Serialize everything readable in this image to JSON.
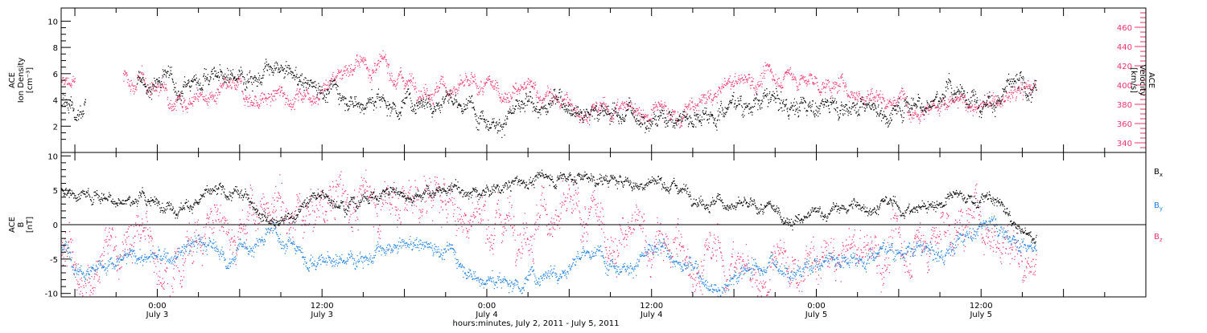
{
  "time_axis": {
    "title": "hours:minutes, July  2, 2011 - July  5, 2011",
    "ticks": [
      {
        "hour": 0,
        "day": 3,
        "time": "0:00",
        "date": "July 3"
      },
      {
        "hour": 12,
        "day": 3,
        "time": "12:00",
        "date": "July 3"
      },
      {
        "hour": 0,
        "day": 4,
        "time": "0:00",
        "date": "July 4"
      },
      {
        "hour": 12,
        "day": 4,
        "time": "12:00",
        "date": "July 4"
      },
      {
        "hour": 0,
        "day": 5,
        "time": "0:00",
        "date": "July 5"
      },
      {
        "hour": 12,
        "day": 5,
        "time": "12:00",
        "date": "July 5"
      }
    ],
    "range": [
      "2011-07-02T17:00",
      "2011-07-06T00:00"
    ],
    "data_end": "2011-07-05T16:00"
  },
  "chart_data": [
    {
      "type": "scatter",
      "ylabel_left": [
        "ACE",
        "Ion Density",
        "[cm⁻³]"
      ],
      "ylabel_right": [
        "ACE",
        "Velocity",
        "[km/s]"
      ],
      "ylim_left": [
        0,
        11
      ],
      "ylim_right": [
        330,
        480
      ],
      "yticks_left": [
        2,
        4,
        6,
        8,
        10
      ],
      "yticks_right": [
        340,
        360,
        380,
        400,
        420,
        440,
        460
      ],
      "colors": {
        "density": "#000000",
        "velocity": "#f0336a"
      },
      "series": [
        {
          "key": "density",
          "axis": "left",
          "scatter": 0.5,
          "gaps": [
            [
              "2011-07-02T18:45",
              "2011-07-02T22:30"
            ]
          ],
          "points": [
            [
              "2011-07-02T17:00",
              3.8
            ],
            [
              "2011-07-02T18:00",
              3.7
            ],
            [
              "2011-07-02T18:45",
              3.6
            ],
            [
              "2011-07-02T22:30",
              5.2
            ],
            [
              "2011-07-03T00:00",
              5.4
            ],
            [
              "2011-07-03T02:00",
              5.0
            ],
            [
              "2011-07-03T03:30",
              6.3
            ],
            [
              "2011-07-03T05:00",
              5.6
            ],
            [
              "2011-07-03T07:00",
              6.4
            ],
            [
              "2011-07-03T09:00",
              5.7
            ],
            [
              "2011-07-03T11:00",
              5.4
            ],
            [
              "2011-07-03T13:00",
              4.9
            ],
            [
              "2011-07-03T15:00",
              4.1
            ],
            [
              "2011-07-03T17:00",
              3.7
            ],
            [
              "2011-07-03T19:00",
              4.3
            ],
            [
              "2011-07-03T21:00",
              4.9
            ],
            [
              "2011-07-03T22:00",
              3.4
            ],
            [
              "2011-07-04T00:00",
              3.1
            ],
            [
              "2011-07-04T02:00",
              3.0
            ],
            [
              "2011-07-04T04:00",
              3.6
            ],
            [
              "2011-07-04T06:00",
              4.0
            ],
            [
              "2011-07-04T08:00",
              3.3
            ],
            [
              "2011-07-04T10:00",
              3.1
            ],
            [
              "2011-07-04T12:00",
              3.0
            ],
            [
              "2011-07-04T14:00",
              2.7
            ],
            [
              "2011-07-04T16:00",
              3.4
            ],
            [
              "2011-07-04T18:00",
              4.0
            ],
            [
              "2011-07-04T20:00",
              3.9
            ],
            [
              "2011-07-04T22:00",
              3.6
            ],
            [
              "2011-07-05T00:00",
              3.7
            ],
            [
              "2011-07-05T02:00",
              4.0
            ],
            [
              "2011-07-05T04:00",
              3.8
            ],
            [
              "2011-07-05T05:00",
              3.0
            ],
            [
              "2011-07-05T07:00",
              4.1
            ],
            [
              "2011-07-05T09:00",
              4.5
            ],
            [
              "2011-07-05T11:00",
              4.6
            ],
            [
              "2011-07-05T13:00",
              4.4
            ],
            [
              "2011-07-05T14:30",
              4.6
            ],
            [
              "2011-07-05T16:00",
              4.1
            ]
          ]
        },
        {
          "key": "velocity",
          "axis": "right",
          "scatter": 6,
          "gaps": [
            [
              "2011-07-02T18:00",
              "2011-07-02T21:30"
            ]
          ],
          "points": [
            [
              "2011-07-02T17:00",
              400
            ],
            [
              "2011-07-02T18:00",
              405
            ],
            [
              "2011-07-02T21:30",
              405
            ],
            [
              "2011-07-03T00:00",
              398
            ],
            [
              "2011-07-03T02:00",
              392
            ],
            [
              "2011-07-03T04:00",
              388
            ],
            [
              "2011-07-03T06:00",
              388
            ],
            [
              "2011-07-03T08:00",
              386
            ],
            [
              "2011-07-03T10:00",
              390
            ],
            [
              "2011-07-03T12:00",
              402
            ],
            [
              "2011-07-03T14:00",
              425
            ],
            [
              "2011-07-03T16:00",
              418
            ],
            [
              "2011-07-03T18:00",
              408
            ],
            [
              "2011-07-03T20:00",
              404
            ],
            [
              "2011-07-03T22:00",
              396
            ],
            [
              "2011-07-04T00:00",
              392
            ],
            [
              "2011-07-04T02:00",
              395
            ],
            [
              "2011-07-04T04:00",
              390
            ],
            [
              "2011-07-04T06:00",
              378
            ],
            [
              "2011-07-04T08:00",
              372
            ],
            [
              "2011-07-04T10:00",
              378
            ],
            [
              "2011-07-04T12:00",
              372
            ],
            [
              "2011-07-04T14:00",
              368
            ],
            [
              "2011-07-04T16:00",
              382
            ],
            [
              "2011-07-04T18:00",
              402
            ],
            [
              "2011-07-04T20:00",
              408
            ],
            [
              "2011-07-04T22:00",
              412
            ],
            [
              "2011-07-05T00:00",
              402
            ],
            [
              "2011-07-05T02:00",
              396
            ],
            [
              "2011-07-05T04:00",
              392
            ],
            [
              "2011-07-05T06:00",
              388
            ],
            [
              "2011-07-05T08:00",
              384
            ],
            [
              "2011-07-05T10:00",
              380
            ],
            [
              "2011-07-05T12:00",
              377
            ],
            [
              "2011-07-05T14:00",
              385
            ],
            [
              "2011-07-05T15:30",
              398
            ],
            [
              "2011-07-05T16:00",
              392
            ]
          ]
        }
      ]
    },
    {
      "type": "scatter",
      "ylabel_left": [
        "ACE",
        "B",
        "[nT]"
      ],
      "ylim": [
        -10.5,
        10.5
      ],
      "yticks": [
        -10,
        -5,
        0,
        5,
        10
      ],
      "zero_line": true,
      "legend": [
        {
          "key": "bx",
          "text": "B",
          "sub": "x",
          "color": "#000000"
        },
        {
          "key": "by",
          "text": "B",
          "sub": "y",
          "color": "#1c7fe0"
        },
        {
          "key": "bz",
          "text": "B",
          "sub": "z",
          "color": "#f0336a"
        }
      ],
      "series": [
        {
          "key": "bx",
          "scatter": 0.6,
          "points": [
            [
              "2011-07-02T17:00",
              5.0
            ],
            [
              "2011-07-02T19:00",
              4.6
            ],
            [
              "2011-07-02T21:00",
              4.3
            ],
            [
              "2011-07-02T23:00",
              3.6
            ],
            [
              "2011-07-03T01:00",
              3.0
            ],
            [
              "2011-07-03T03:00",
              3.9
            ],
            [
              "2011-07-03T05:00",
              4.1
            ],
            [
              "2011-07-03T07:00",
              3.6
            ],
            [
              "2011-07-03T09:00",
              0.5
            ],
            [
              "2011-07-03T11:00",
              3.6
            ],
            [
              "2011-07-03T13:00",
              3.9
            ],
            [
              "2011-07-03T15:00",
              4.0
            ],
            [
              "2011-07-03T17:00",
              4.8
            ],
            [
              "2011-07-03T19:00",
              5.0
            ],
            [
              "2011-07-03T21:00",
              4.9
            ],
            [
              "2011-07-03T23:00",
              4.5
            ],
            [
              "2011-07-04T01:00",
              5.4
            ],
            [
              "2011-07-04T03:00",
              6.4
            ],
            [
              "2011-07-04T05:00",
              6.9
            ],
            [
              "2011-07-04T07:00",
              7.4
            ],
            [
              "2011-07-04T09:00",
              6.4
            ],
            [
              "2011-07-04T11:00",
              5.9
            ],
            [
              "2011-07-04T13:00",
              6.4
            ],
            [
              "2011-07-04T15:00",
              5.0
            ],
            [
              "2011-07-04T17:00",
              3.6
            ],
            [
              "2011-07-04T19:00",
              2.1
            ],
            [
              "2011-07-04T21:00",
              1.6
            ],
            [
              "2011-07-04T23:00",
              0.6
            ],
            [
              "2011-07-05T01:00",
              2.0
            ],
            [
              "2011-07-05T03:00",
              2.6
            ],
            [
              "2011-07-05T05:00",
              3.1
            ],
            [
              "2011-07-05T07:00",
              2.0
            ],
            [
              "2011-07-05T09:00",
              3.6
            ],
            [
              "2011-07-05T11:00",
              3.8
            ],
            [
              "2011-07-05T13:00",
              3.5
            ],
            [
              "2011-07-05T15:00",
              -1.5
            ],
            [
              "2011-07-05T16:00",
              -2.5
            ]
          ]
        },
        {
          "key": "by",
          "scatter": 0.8,
          "points": [
            [
              "2011-07-02T17:00",
              -3.6
            ],
            [
              "2011-07-02T19:00",
              -5.2
            ],
            [
              "2011-07-02T21:00",
              -5.6
            ],
            [
              "2011-07-02T23:00",
              -4.6
            ],
            [
              "2011-07-03T01:00",
              -5.2
            ],
            [
              "2011-07-03T03:00",
              -2.6
            ],
            [
              "2011-07-03T05:00",
              -4.6
            ],
            [
              "2011-07-03T07:00",
              -2.6
            ],
            [
              "2011-07-03T09:00",
              -1.6
            ],
            [
              "2011-07-03T11:00",
              -4.6
            ],
            [
              "2011-07-03T13:00",
              -5.6
            ],
            [
              "2011-07-03T15:00",
              -3.6
            ],
            [
              "2011-07-03T17:00",
              -4.6
            ],
            [
              "2011-07-03T19:00",
              -2.6
            ],
            [
              "2011-07-03T21:00",
              -3.1
            ],
            [
              "2011-07-03T23:00",
              -6.6
            ],
            [
              "2011-07-04T01:00",
              -8.6
            ],
            [
              "2011-07-04T03:00",
              -7.6
            ],
            [
              "2011-07-04T05:00",
              -5.6
            ],
            [
              "2011-07-04T07:00",
              -4.1
            ],
            [
              "2011-07-04T09:00",
              -5.1
            ],
            [
              "2011-07-04T11:00",
              -4.6
            ],
            [
              "2011-07-04T13:00",
              -4.1
            ],
            [
              "2011-07-04T15:00",
              -6.6
            ],
            [
              "2011-07-04T17:00",
              -8.6
            ],
            [
              "2011-07-04T19:00",
              -6.1
            ],
            [
              "2011-07-04T21:00",
              -5.6
            ],
            [
              "2011-07-04T23:00",
              -6.1
            ],
            [
              "2011-07-05T01:00",
              -4.6
            ],
            [
              "2011-07-05T03:00",
              -4.1
            ],
            [
              "2011-07-05T05:00",
              -3.1
            ],
            [
              "2011-07-05T07:00",
              -3.6
            ],
            [
              "2011-07-05T09:00",
              -4.6
            ],
            [
              "2011-07-05T11:00",
              -1.1
            ],
            [
              "2011-07-05T13:00",
              1.0
            ],
            [
              "2011-07-05T15:00",
              -2.6
            ],
            [
              "2011-07-05T16:00",
              -3.1
            ]
          ]
        },
        {
          "key": "bz",
          "scatter": 2.2,
          "points": [
            [
              "2011-07-02T17:00",
              -3.1
            ],
            [
              "2011-07-02T19:00",
              -4.1
            ],
            [
              "2011-07-02T21:00",
              -1.6
            ],
            [
              "2011-07-02T23:00",
              -2.6
            ],
            [
              "2011-07-03T01:00",
              -4.6
            ],
            [
              "2011-07-03T03:00",
              -1.1
            ],
            [
              "2011-07-03T05:00",
              1.4
            ],
            [
              "2011-07-03T07:00",
              2.9
            ],
            [
              "2011-07-03T09:00",
              0.4
            ],
            [
              "2011-07-03T11:00",
              1.9
            ],
            [
              "2011-07-03T13:00",
              3.9
            ],
            [
              "2011-07-03T15:00",
              2.9
            ],
            [
              "2011-07-03T17:00",
              4.4
            ],
            [
              "2011-07-03T19:00",
              5.4
            ],
            [
              "2011-07-03T21:00",
              2.9
            ],
            [
              "2011-07-03T23:00",
              0.9
            ],
            [
              "2011-07-04T01:00",
              1.9
            ],
            [
              "2011-07-04T03:00",
              3.4
            ],
            [
              "2011-07-04T05:00",
              1.9
            ],
            [
              "2011-07-04T07:00",
              -1.6
            ],
            [
              "2011-07-04T09:00",
              -1.1
            ],
            [
              "2011-07-04T11:00",
              -2.6
            ],
            [
              "2011-07-04T13:00",
              -3.6
            ],
            [
              "2011-07-04T15:00",
              -4.6
            ],
            [
              "2011-07-04T17:00",
              -5.1
            ],
            [
              "2011-07-04T19:00",
              -6.6
            ],
            [
              "2011-07-04T21:00",
              -7.1
            ],
            [
              "2011-07-04T23:00",
              -6.6
            ],
            [
              "2011-07-05T01:00",
              -6.1
            ],
            [
              "2011-07-05T03:00",
              -4.6
            ],
            [
              "2011-07-05T05:00",
              -3.6
            ],
            [
              "2011-07-05T07:00",
              -2.6
            ],
            [
              "2011-07-05T09:00",
              -1.1
            ],
            [
              "2011-07-05T11:00",
              0.4
            ],
            [
              "2011-07-05T13:00",
              -0.1
            ],
            [
              "2011-07-05T15:00",
              -3.1
            ],
            [
              "2011-07-05T16:00",
              -3.6
            ]
          ]
        }
      ]
    }
  ]
}
